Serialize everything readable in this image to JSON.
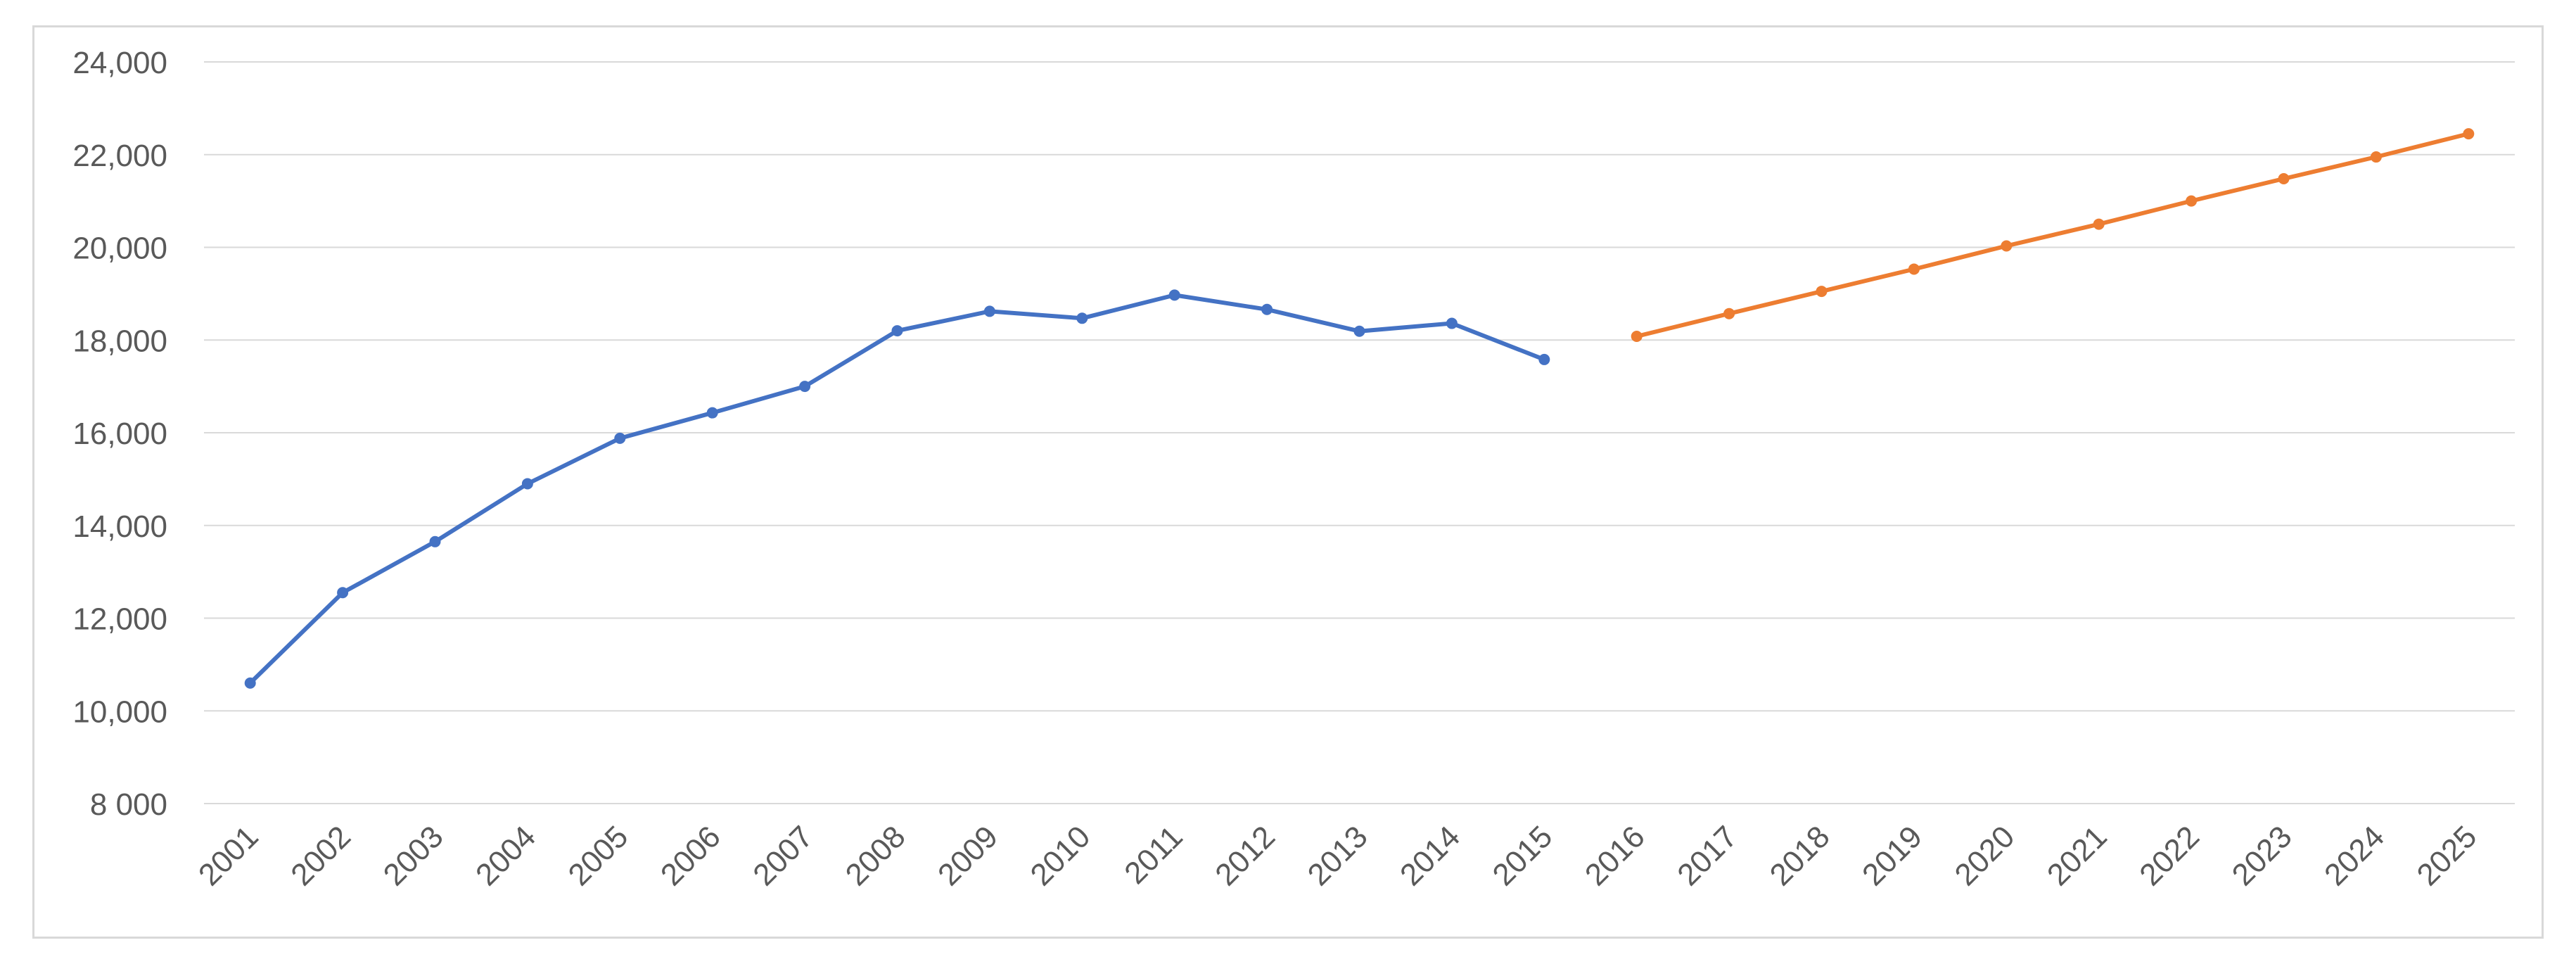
{
  "chart_data": {
    "type": "line",
    "title": "",
    "xlabel": "",
    "ylabel": "",
    "ylim": [
      8000,
      24000
    ],
    "y_ticks": [
      8000,
      10000,
      12000,
      14000,
      16000,
      18000,
      20000,
      22000,
      24000
    ],
    "y_tick_labels": [
      "8 000",
      "10,000",
      "12,000",
      "14,000",
      "16,000",
      "18,000",
      "20,000",
      "22,000",
      "24,000"
    ],
    "categories": [
      "2001",
      "2002",
      "2003",
      "2004",
      "2005",
      "2006",
      "2007",
      "2008",
      "2009",
      "2010",
      "2011",
      "2012",
      "2013",
      "2014",
      "2015",
      "2016",
      "2017",
      "2018",
      "2019",
      "2020",
      "2021",
      "2022",
      "2023",
      "2024",
      "2025"
    ],
    "grid": true,
    "legend": "none",
    "series": [
      {
        "color": "#4472c4",
        "x": [
          "2001",
          "2002",
          "2003",
          "2004",
          "2005",
          "2006",
          "2007",
          "2008",
          "2009",
          "2010",
          "2011",
          "2012",
          "2013",
          "2014",
          "2015"
        ],
        "values": [
          10600,
          12550,
          13650,
          14900,
          15880,
          16430,
          17000,
          18200,
          18620,
          18470,
          18970,
          18660,
          18190,
          18360,
          17580
        ]
      },
      {
        "color": "#ed7d31",
        "x": [
          "2016",
          "2017",
          "2018",
          "2019",
          "2020",
          "2021",
          "2022",
          "2023",
          "2024",
          "2025"
        ],
        "values": [
          18080,
          18570,
          19050,
          19530,
          20030,
          20500,
          21000,
          21480,
          21950,
          22450
        ]
      }
    ]
  }
}
